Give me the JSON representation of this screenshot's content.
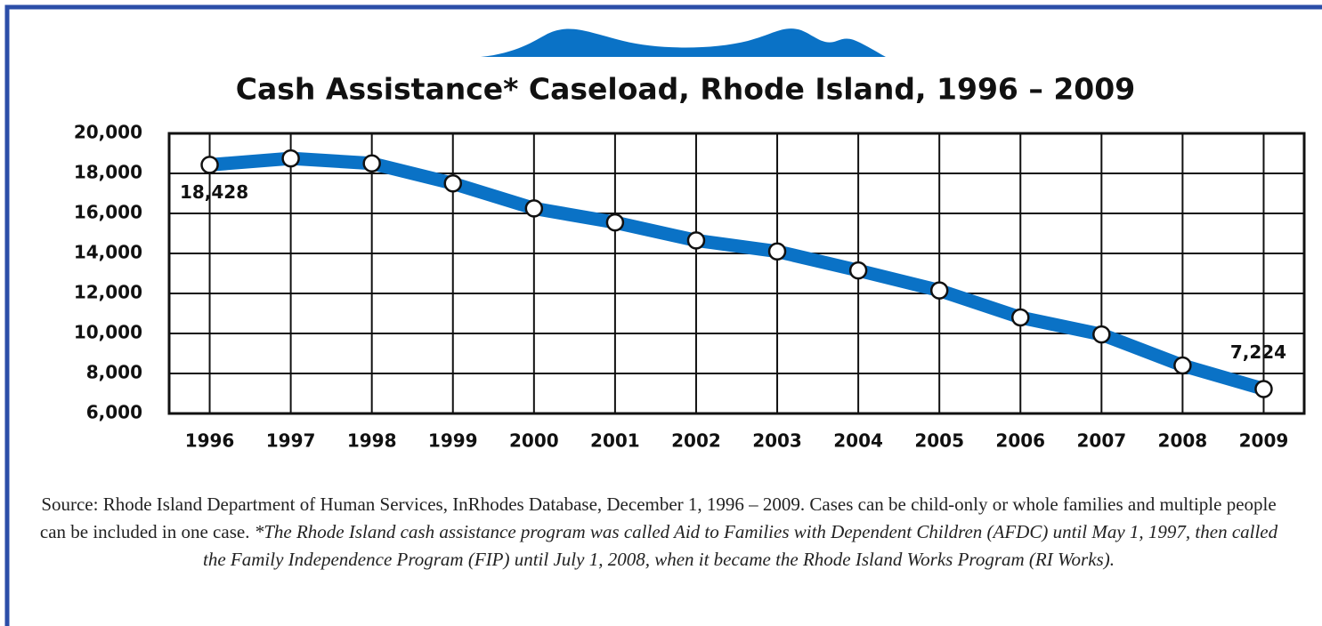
{
  "chart_data": {
    "type": "line",
    "title": "Cash Assistance* Caseload, Rhode Island, 1996 – 2009",
    "categories": [
      "1996",
      "1997",
      "1998",
      "1999",
      "2000",
      "2001",
      "2002",
      "2003",
      "2004",
      "2005",
      "2006",
      "2007",
      "2008",
      "2009"
    ],
    "series": [
      {
        "name": "Caseload",
        "color": "#0a72c6",
        "values": [
          18428,
          18750,
          18500,
          17500,
          16250,
          15550,
          14650,
          14100,
          13150,
          12150,
          10800,
          9950,
          8400,
          7224
        ],
        "value_labels": [
          "18,428",
          null,
          null,
          null,
          null,
          null,
          null,
          null,
          null,
          null,
          null,
          null,
          null,
          "7,224"
        ]
      }
    ],
    "ylim": [
      6000,
      20000
    ],
    "yticks": [
      {
        "value": 6000,
        "label": "6,000"
      },
      {
        "value": 8000,
        "label": "8,000"
      },
      {
        "value": 10000,
        "label": "10,000"
      },
      {
        "value": 12000,
        "label": "12,000"
      },
      {
        "value": 14000,
        "label": "14,000"
      },
      {
        "value": 16000,
        "label": "16,000"
      },
      {
        "value": 18000,
        "label": "18,000"
      },
      {
        "value": 20000,
        "label": "20,000"
      }
    ],
    "grid": true,
    "source": "Source: Rhode Island Department of Human Services, InRhodes Database, December 1, 1996 – 2009. Cases can be child-only or whole families and multiple people can be included in one case.",
    "footnote": "*The Rhode Island cash assistance program was called Aid to Families with Dependent Children (AFDC) until May 1, 1997, then called the Family Independence Program (FIP) until July 1, 2008, when it became the Rhode Island Works Program (RI Works)."
  }
}
